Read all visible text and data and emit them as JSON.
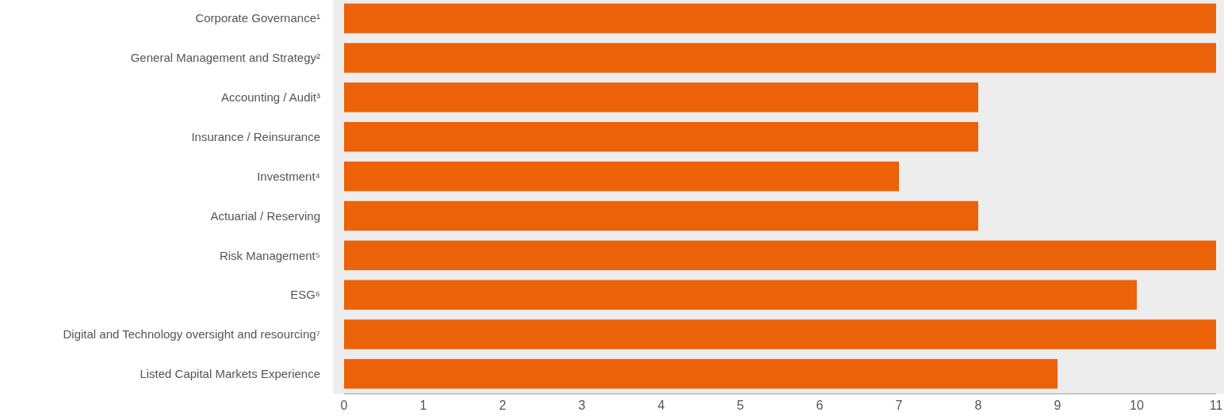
{
  "chart_data": {
    "type": "bar",
    "orientation": "horizontal",
    "categories": [
      "Corporate Governance¹",
      "General Management and Strategy²",
      "Accounting / Audit³",
      "Insurance / Reinsurance",
      "Investment⁴",
      "Actuarial / Reserving",
      "Risk Management⁵",
      "ESG⁶",
      "Digital and Technology oversight and resourcing⁷",
      "Listed Capital Markets Experience"
    ],
    "values": [
      11,
      11,
      8,
      8,
      7,
      8,
      11,
      10,
      11,
      9
    ],
    "color": "#ec6209",
    "xlim": [
      0,
      11
    ],
    "xticks": [
      0,
      1,
      2,
      3,
      4,
      5,
      6,
      7,
      8,
      9,
      10,
      11
    ],
    "grid": false
  }
}
